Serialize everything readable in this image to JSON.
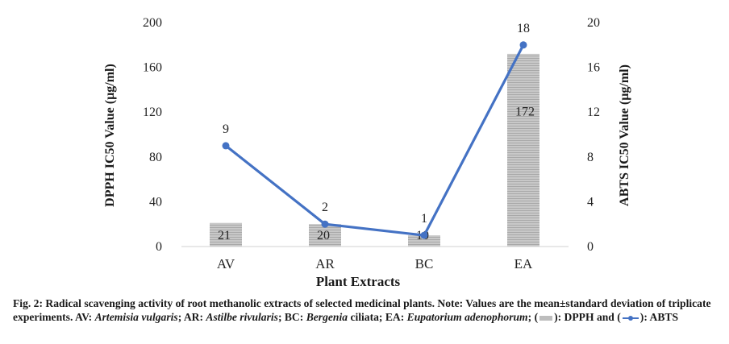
{
  "chart_data": {
    "type": "bar",
    "categories": [
      "AV",
      "AR",
      "BC",
      "EA"
    ],
    "xlabel": "Plant Extracts",
    "y_left": {
      "label": "DPPH IC50 Value (µg/ml)",
      "range": [
        0,
        200
      ],
      "ticks": [
        "0",
        "40",
        "80",
        "120",
        "160",
        "200"
      ]
    },
    "y_right": {
      "label": "ABTS IC50 Value (µg/ml)",
      "range": [
        0,
        20
      ],
      "ticks": [
        "0",
        "4",
        "8",
        "12",
        "16",
        "20"
      ]
    },
    "series": [
      {
        "type": "bar",
        "axis": "left",
        "values": [
          21,
          20,
          10,
          172
        ],
        "labels": [
          "21",
          "20",
          "10",
          "172"
        ],
        "color": "#bdbdbd"
      },
      {
        "type": "line",
        "axis": "right",
        "values": [
          9,
          2,
          1,
          18
        ],
        "labels": [
          "9",
          "2",
          "1",
          "18"
        ],
        "color": "#4472c4"
      }
    ],
    "grid": false
  },
  "caption": {
    "p1": "Fig. 2: Radical scavenging activity of root methanolic extracts of selected medicinal plants. Note: Values are the mean±standard deviation of triplicate experiments. AV: ",
    "av": "Artemisia vulgaris",
    "p2": "; AR: ",
    "ar": "Astilbe rivularis",
    "p3": "; BC: ",
    "bc": "Bergenia",
    "p4": " ciliata; EA: ",
    "ea": "Eupatorium adenophorum",
    "p5": "; (",
    "p6": "): DPPH and (",
    "p7": "): ABTS"
  }
}
